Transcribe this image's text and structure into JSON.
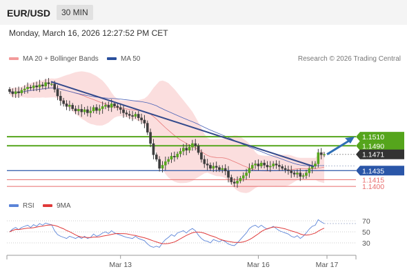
{
  "header": {
    "symbol": "EUR/USD",
    "timeframe": "30 MIN"
  },
  "timestamp": "Monday, March 16, 2026 12:27:52 PM CET",
  "legend": {
    "ma_bb": "MA 20 + Bollinger Bands",
    "ma50": "MA 50"
  },
  "copyright": "Research © 2026 Trading Central",
  "rsi_legend": {
    "rsi": "RSI",
    "ma": "9MA"
  },
  "colors": {
    "resistance": "#55a51c",
    "pivot": "#2a56a8",
    "support": "#e76b6b",
    "price_tag": "#333333",
    "candle": "#3d3d3d",
    "bb_fill": "#fbdada",
    "ma20": "#e87a7a",
    "ma50": "#4a62b6",
    "trend": "#344a8c",
    "arrow": "#2f6fb5",
    "rsi_line": "#5b84d8",
    "rsi_ma": "#e03a3a"
  },
  "chart_data": {
    "type": "candlestick",
    "price_scale": {
      "min": 1.1385,
      "max": 1.166
    },
    "levels": [
      {
        "price": 1.151,
        "label": "1.1510",
        "kind": "resistance"
      },
      {
        "price": 1.149,
        "label": "1.1490",
        "kind": "resistance"
      },
      {
        "price": 1.1471,
        "label": "1.1471",
        "kind": "current"
      },
      {
        "price": 1.1435,
        "label": "1.1435",
        "kind": "pivot"
      },
      {
        "price": 1.1415,
        "label": "1.1415",
        "kind": "support"
      },
      {
        "price": 1.14,
        "label": "1.1400",
        "kind": "support"
      }
    ],
    "x_labels": [
      "Mar 13",
      "Mar 16",
      "Mar 17"
    ],
    "rsi_levels": [
      "70",
      "50",
      "30"
    ],
    "closes": [
      1.161,
      1.1605,
      1.161,
      1.1607,
      1.1613,
      1.1616,
      1.162,
      1.1618,
      1.1623,
      1.162,
      1.1625,
      1.1622,
      1.163,
      1.1627,
      1.1627,
      1.1615,
      1.16,
      1.159,
      1.1583,
      1.1577,
      1.158,
      1.1572,
      1.1567,
      1.1571,
      1.1565,
      1.157,
      1.1563,
      1.1567,
      1.1575,
      1.1568,
      1.1572,
      1.1577,
      1.158,
      1.1575,
      1.1583,
      1.1578,
      1.1575,
      1.157,
      1.1563,
      1.156,
      1.1557,
      1.1555,
      1.156,
      1.1552,
      1.1547,
      1.154,
      1.152,
      1.1495,
      1.147,
      1.146,
      1.144,
      1.1447,
      1.1455,
      1.146,
      1.1467,
      1.1465,
      1.1472,
      1.1478,
      1.1485,
      1.148,
      1.1487,
      1.1495,
      1.149,
      1.1475,
      1.146,
      1.145,
      1.1447,
      1.144,
      1.1445,
      1.1442,
      1.1437,
      1.144,
      1.1434,
      1.142,
      1.141,
      1.1407,
      1.1412,
      1.1418,
      1.1424,
      1.143,
      1.144,
      1.1447,
      1.145,
      1.1445,
      1.1452,
      1.1447,
      1.1443,
      1.1445,
      1.145,
      1.1447,
      1.1444,
      1.144,
      1.1437,
      1.1435,
      1.143,
      1.1427,
      1.143,
      1.1422,
      1.1424,
      1.143,
      1.144,
      1.1445,
      1.145,
      1.1475,
      1.147,
      1.1471
    ],
    "rsi": [
      50,
      55,
      58,
      54,
      58,
      60,
      62,
      58,
      63,
      60,
      65,
      62,
      66,
      64,
      63,
      52,
      45,
      42,
      40,
      38,
      42,
      40,
      38,
      41,
      38,
      42,
      38,
      40,
      46,
      42,
      44,
      48,
      50,
      47,
      52,
      48,
      46,
      44,
      42,
      40,
      39,
      38,
      42,
      38,
      36,
      34,
      28,
      24,
      22,
      24,
      22,
      30,
      36,
      40,
      45,
      42,
      48,
      50,
      52,
      48,
      53,
      56,
      52,
      44,
      38,
      34,
      33,
      30,
      36,
      34,
      32,
      35,
      32,
      28,
      26,
      25,
      30,
      36,
      42,
      48,
      56,
      60,
      62,
      58,
      62,
      58,
      55,
      57,
      60,
      56,
      52,
      50,
      48,
      46,
      42,
      40,
      43,
      38,
      42,
      48,
      55,
      60,
      62,
      72,
      68,
      65
    ]
  }
}
